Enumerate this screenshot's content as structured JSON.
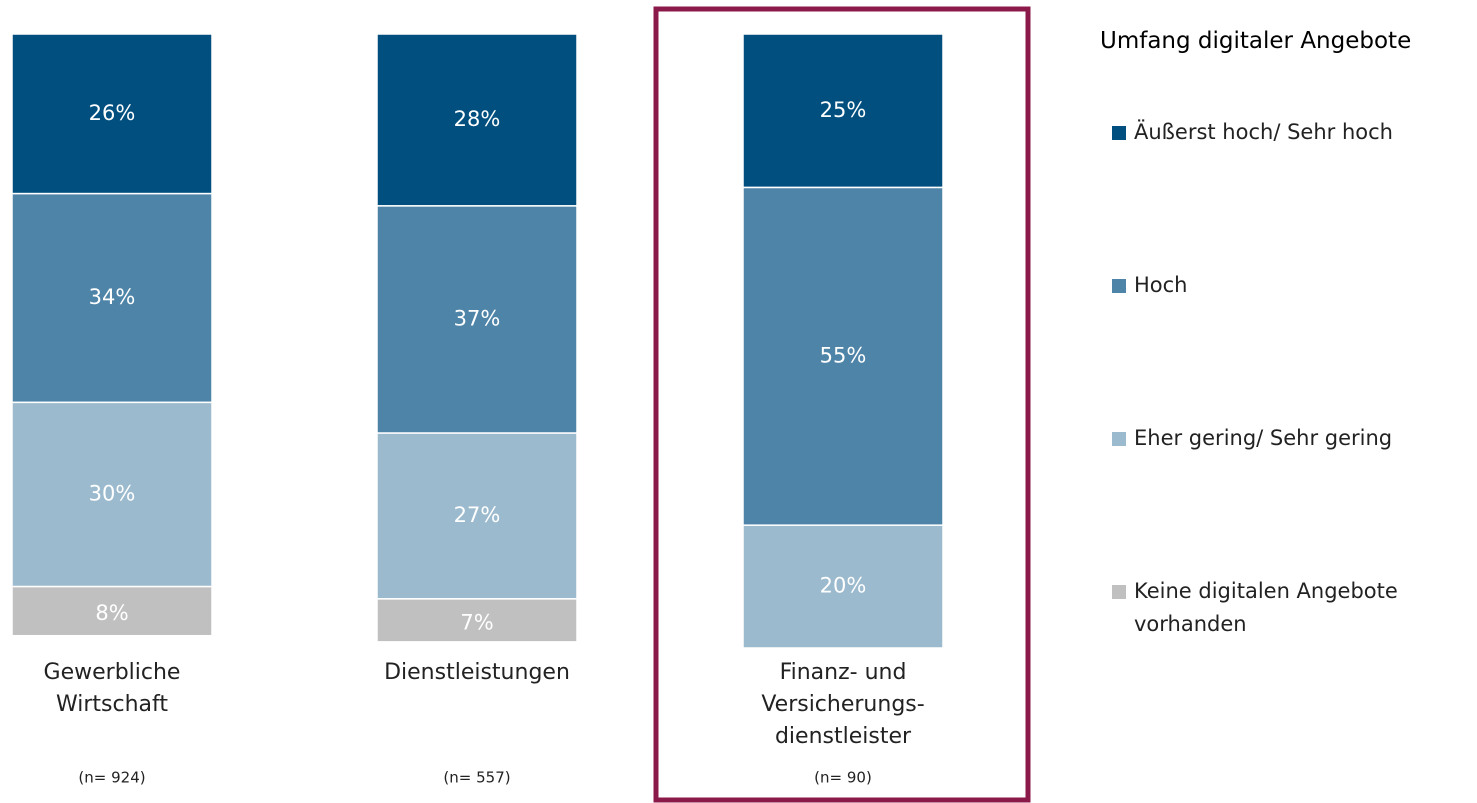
{
  "chart_data": {
    "type": "stacked_bar",
    "categories": [
      [
        "Gewerbliche",
        "Wirtschaft"
      ],
      [
        "Dienstleistungen"
      ],
      [
        "Finanz- und",
        "Versicherungs-",
        "dienstleister"
      ]
    ],
    "sample_sizes": [
      "(n= 924)",
      "(n= 557)",
      "(n= 90)"
    ],
    "legend_title": "Umfang digitaler Angebote",
    "legend_position": "right",
    "highlight": 2,
    "ylim": [
      0,
      100
    ],
    "series": [
      {
        "name": "Äußerst hoch/ Sehr hoch",
        "color": "#004f7f",
        "values": [
          26,
          28,
          25
        ],
        "value_labels": [
          "26%",
          "28%",
          "25%"
        ]
      },
      {
        "name": "Hoch",
        "color": "#4e84a8",
        "values": [
          34,
          37,
          55
        ],
        "value_labels": [
          "34%",
          "37%",
          "55%"
        ]
      },
      {
        "name": "Eher gering/ Sehr gering",
        "color": "#9bbacd",
        "values": [
          30,
          27,
          20
        ],
        "value_labels": [
          "30%",
          "27%",
          "20%"
        ]
      },
      {
        "name": "Keine digitalen Angebote vorhanden",
        "color": "#c0c0c0",
        "values": [
          8,
          7,
          null
        ],
        "value_labels": [
          "8%",
          "7%",
          null
        ]
      }
    ]
  }
}
